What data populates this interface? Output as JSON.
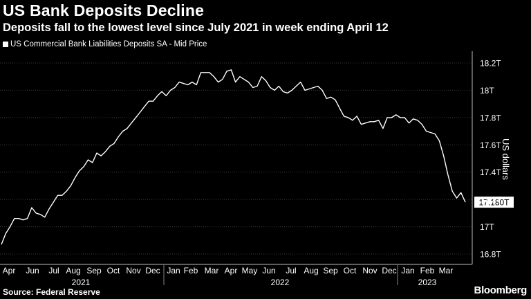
{
  "title": "US Bank Deposits Decline",
  "subtitle": "Deposits fall to the lowest level since July 2021 in week ending April 12",
  "legend": "US Commercial Bank Liabilities Deposits SA - Mid Price",
  "source": "Source: Federal Reserve",
  "brand": "Bloomberg",
  "colors": {
    "background": "#000000",
    "line": "#ffffff"
  },
  "chart_data": {
    "type": "line",
    "ylabel": "US dollars",
    "y_ticks": [
      "18.2T",
      "18T",
      "17.8T",
      "17.6T",
      "17.4T",
      "17.2T",
      "17T",
      "16.8T"
    ],
    "y_tick_values": [
      18.2,
      18.0,
      17.8,
      17.6,
      17.4,
      17.2,
      17.0,
      16.8
    ],
    "ylim": [
      16.8,
      18.2
    ],
    "x_month_labels": [
      "Apr",
      "Jun",
      "Jul",
      "Aug",
      "Sep",
      "Oct",
      "Nov",
      "Dec",
      "Jan",
      "Feb",
      "Mar",
      "Apr",
      "May",
      "Jun",
      "Jul",
      "Aug",
      "Sep",
      "Oct",
      "Nov",
      "Dec",
      "Jan",
      "Feb",
      "Mar"
    ],
    "x_year_labels": [
      "2021",
      "2022",
      "2023"
    ],
    "last_value_label": "17.180T",
    "series": [
      {
        "name": "US Commercial Bank Liabilities Deposits SA - Mid Price",
        "unit": "trillion USD",
        "weekly_values": [
          16.87,
          16.95,
          17.0,
          17.06,
          17.06,
          17.05,
          17.06,
          17.14,
          17.1,
          17.09,
          17.07,
          17.13,
          17.18,
          17.23,
          17.23,
          17.26,
          17.3,
          17.36,
          17.41,
          17.44,
          17.49,
          17.47,
          17.54,
          17.52,
          17.55,
          17.59,
          17.61,
          17.66,
          17.7,
          17.72,
          17.76,
          17.8,
          17.84,
          17.88,
          17.92,
          17.92,
          17.96,
          17.99,
          17.96,
          18.0,
          18.02,
          18.06,
          18.05,
          18.04,
          18.06,
          18.04,
          18.13,
          18.13,
          18.13,
          18.1,
          18.06,
          18.08,
          18.14,
          18.15,
          18.06,
          18.1,
          18.08,
          18.06,
          18.02,
          18.03,
          18.1,
          18.07,
          18.02,
          18.0,
          18.03,
          17.99,
          17.98,
          18.0,
          18.03,
          18.06,
          18.0,
          18.01,
          18.02,
          18.03,
          18.0,
          17.94,
          17.95,
          17.93,
          17.87,
          17.81,
          17.8,
          17.78,
          17.81,
          17.75,
          17.76,
          17.77,
          17.77,
          17.78,
          17.72,
          17.8,
          17.8,
          17.82,
          17.8,
          17.8,
          17.76,
          17.79,
          17.78,
          17.75,
          17.7,
          17.69,
          17.68,
          17.63,
          17.52,
          17.38,
          17.26,
          17.21,
          17.25,
          17.18
        ]
      }
    ]
  }
}
